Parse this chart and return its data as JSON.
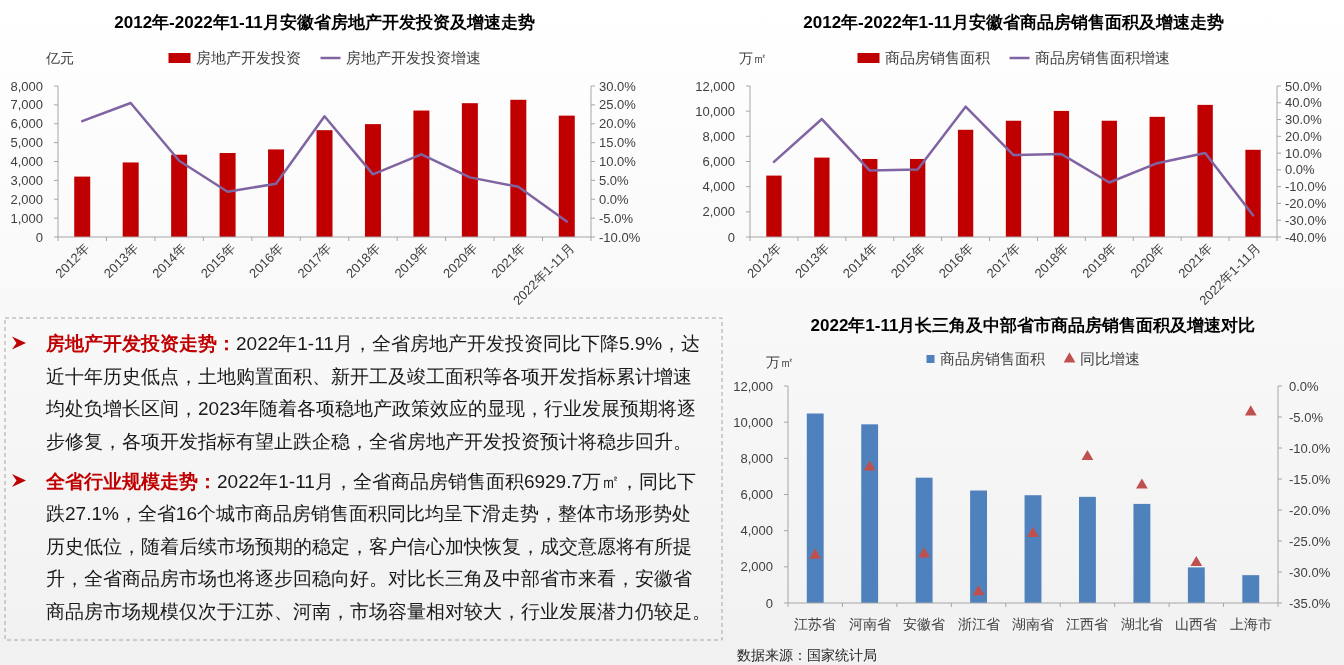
{
  "chart_data": [
    {
      "type": "bar",
      "title": "2012年-2022年1-11月安徽省房地产开发投资及增速走势",
      "ylabel": "亿元",
      "categories": [
        "2012年",
        "2013年",
        "2014年",
        "2015年",
        "2016年",
        "2017年",
        "2018年",
        "2019年",
        "2020年",
        "2021年",
        "2022年1-11月"
      ],
      "series": [
        {
          "name": "房地产开发投资",
          "type": "bar",
          "color": "#c00000",
          "values": [
            3200,
            3950,
            4360,
            4450,
            4640,
            5660,
            5980,
            6700,
            7090,
            7270,
            6430
          ]
        },
        {
          "name": "房地产开发投资增速",
          "type": "line",
          "axis": "y2",
          "color": "#8064a2",
          "values": [
            20.7,
            25.5,
            10.2,
            2.0,
            4.1,
            22.0,
            6.6,
            11.9,
            5.8,
            3.3,
            -5.9
          ]
        }
      ],
      "ylim": [
        0,
        8000
      ],
      "yticks": [
        {
          "value": 0,
          "label": "0"
        },
        {
          "value": 1000,
          "label": "1,000"
        },
        {
          "value": 2000,
          "label": "2,000"
        },
        {
          "value": 3000,
          "label": "3,000"
        },
        {
          "value": 4000,
          "label": "4,000"
        },
        {
          "value": 5000,
          "label": "5,000"
        },
        {
          "value": 6000,
          "label": "6,000"
        },
        {
          "value": 7000,
          "label": "7,000"
        },
        {
          "value": 8000,
          "label": "8,000"
        }
      ],
      "y2lim": [
        -10,
        30
      ],
      "y2ticks": [
        {
          "value": -10,
          "label": "-10.0%"
        },
        {
          "value": -5,
          "label": "-5.0%"
        },
        {
          "value": 0,
          "label": "0.0%"
        },
        {
          "value": 5,
          "label": "5.0%"
        },
        {
          "value": 10,
          "label": "10.0%"
        },
        {
          "value": 15,
          "label": "15.0%"
        },
        {
          "value": 20,
          "label": "20.0%"
        },
        {
          "value": 25,
          "label": "25.0%"
        },
        {
          "value": 30,
          "label": "30.0%"
        }
      ],
      "legend": "top"
    },
    {
      "type": "bar",
      "title": "2012年-2022年1-11月安徽省商品房销售面积及增速走势",
      "ylabel": "万㎡",
      "categories": [
        "2012年",
        "2013年",
        "2014年",
        "2015年",
        "2016年",
        "2017年",
        "2018年",
        "2019年",
        "2020年",
        "2021年",
        "2022年1-11月"
      ],
      "series": [
        {
          "name": "商品房销售面积",
          "type": "bar",
          "color": "#c00000",
          "values": [
            4880,
            6310,
            6200,
            6200,
            8520,
            9240,
            10020,
            9240,
            9550,
            10500,
            6930
          ]
        },
        {
          "name": "商品房销售面积增速",
          "type": "line",
          "axis": "y2",
          "color": "#8064a2",
          "values": [
            4.8,
            30.3,
            -0.4,
            0.2,
            37.7,
            8.8,
            9.4,
            -7.5,
            4.0,
            10.1,
            -27.1
          ]
        }
      ],
      "ylim": [
        0,
        12000
      ],
      "yticks": [
        {
          "value": 0,
          "label": "0"
        },
        {
          "value": 2000,
          "label": "2,000"
        },
        {
          "value": 4000,
          "label": "4,000"
        },
        {
          "value": 6000,
          "label": "6,000"
        },
        {
          "value": 8000,
          "label": "8,000"
        },
        {
          "value": 10000,
          "label": "10,000"
        },
        {
          "value": 12000,
          "label": "12,000"
        }
      ],
      "y2lim": [
        -40,
        50
      ],
      "y2ticks": [
        {
          "value": -40,
          "label": "-40.0%"
        },
        {
          "value": -30,
          "label": "-30.0%"
        },
        {
          "value": -20,
          "label": "-20.0%"
        },
        {
          "value": -10,
          "label": "-10.0%"
        },
        {
          "value": 0,
          "label": "0.0%"
        },
        {
          "value": 10,
          "label": "10.0%"
        },
        {
          "value": 20,
          "label": "20.0%"
        },
        {
          "value": 30,
          "label": "30.0%"
        },
        {
          "value": 40,
          "label": "40.0%"
        },
        {
          "value": 50,
          "label": "50.0%"
        }
      ],
      "legend": "top"
    },
    {
      "type": "other",
      "annotations": [
        "房地产开发投资走势：2022年1-11月，全省房地产开发投资同比下降5.9%，达近十年历史低点，土地购置面积、新开工及竣工面积等各项开发指标累计增速均处负增长区间，2023年随着各项稳地产政策效应的显现，行业发展预期将逐步修复，各项开发指标有望止跌企稳，全省房地产开发投资预计将稳步回升。",
        "全省行业规模走势：2022年1-11月，全省商品房销售面积6929.7万㎡，同比下跌27.1%，全省16个城市商品房销售面积同比均呈下滑走势，整体市场形势处历史低位，随着后续市场预期的稳定，客户信心加快恢复，成交意愿将有所提升，全省商品房市场也将逐步回稳向好。对比长三角及中部省市来看，安徽省商品房市场规模仅次于江苏、河南，市场容量相对较大，行业发展潜力仍较足。"
      ]
    },
    {
      "type": "bar",
      "title": "2022年1-11月长三角及中部省市商品房销售面积及增速对比",
      "ylabel": "万㎡",
      "categories": [
        "江苏省",
        "河南省",
        "安徽省",
        "浙江省",
        "湖南省",
        "江西省",
        "湖北省",
        "山西省",
        "上海市"
      ],
      "series": [
        {
          "name": "商品房销售面积",
          "type": "bar",
          "color": "#4f81bd",
          "values": [
            10480,
            9880,
            6930,
            6220,
            5960,
            5870,
            5480,
            1970,
            1540
          ]
        },
        {
          "name": "同比增速",
          "type": "scatter",
          "axis": "y2",
          "marker": "triangle",
          "color": "#c0504d",
          "x": [
            "江苏省",
            "河南省",
            "安徽省",
            "浙江省",
            "湖南省",
            "江西省",
            "湖北省",
            "山西省",
            "上海市"
          ],
          "values": [
            -27.3,
            -13.1,
            -27.1,
            -33.2,
            -23.8,
            -11.4,
            -16.0,
            -28.5,
            -4.2
          ]
        }
      ],
      "ylim": [
        0,
        12000
      ],
      "yticks": [
        {
          "value": 0,
          "label": "0"
        },
        {
          "value": 2000,
          "label": "2,000"
        },
        {
          "value": 4000,
          "label": "4,000"
        },
        {
          "value": 6000,
          "label": "6,000"
        },
        {
          "value": 8000,
          "label": "8,000"
        },
        {
          "value": 10000,
          "label": "10,000"
        },
        {
          "value": 12000,
          "label": "12,000"
        }
      ],
      "y2lim": [
        -35,
        0
      ],
      "y2ticks": [
        {
          "value": -35,
          "label": "-35.0%"
        },
        {
          "value": -30,
          "label": "-30.0%"
        },
        {
          "value": -25,
          "label": "-25.0%"
        },
        {
          "value": -20,
          "label": "-20.0%"
        },
        {
          "value": -15,
          "label": "-15.0%"
        },
        {
          "value": -10,
          "label": "-10.0%"
        },
        {
          "value": -5,
          "label": "-5.0%"
        },
        {
          "value": 0,
          "label": "0.0%"
        }
      ],
      "legend": "top",
      "annotations": [
        "数据来源：国家统计局"
      ]
    }
  ]
}
